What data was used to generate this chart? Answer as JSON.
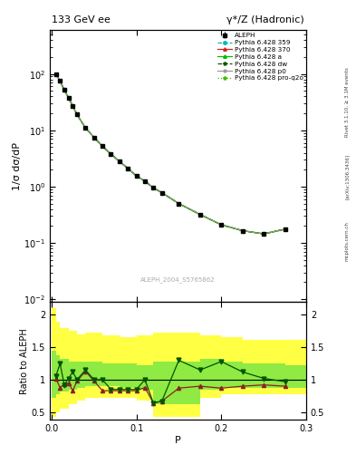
{
  "title_left": "133 GeV ee",
  "title_right": "γ*/Z (Hadronic)",
  "ylabel_main": "1/σ dσ/dP",
  "ylabel_ratio": "Ratio to ALEPH",
  "xlabel": "P",
  "rivet_label": "Rivet 3.1.10, ≥ 3.1M events",
  "arxiv_label": "[arXiv:1306.3436]",
  "mcplots_label": "mcplots.cern.ch",
  "analysis_label": "ALEPH_2004_S5765862",
  "ylim_main": [
    0.009,
    600
  ],
  "ylim_ratio": [
    0.38,
    2.2
  ],
  "xlim": [
    -0.002,
    0.3
  ],
  "data_x": [
    0.005,
    0.01,
    0.015,
    0.02,
    0.025,
    0.03,
    0.04,
    0.05,
    0.06,
    0.07,
    0.08,
    0.09,
    0.1,
    0.11,
    0.12,
    0.13,
    0.15,
    0.175,
    0.2,
    0.225,
    0.25,
    0.275
  ],
  "data_y": [
    100,
    75,
    52,
    38,
    27,
    19,
    11,
    7.5,
    5.2,
    3.8,
    2.8,
    2.1,
    1.55,
    1.25,
    0.95,
    0.78,
    0.5,
    0.32,
    0.21,
    0.165,
    0.145,
    0.175
  ],
  "data_yerr": [
    8,
    5,
    3.5,
    2.5,
    1.8,
    1.2,
    0.7,
    0.45,
    0.3,
    0.22,
    0.16,
    0.12,
    0.09,
    0.07,
    0.055,
    0.045,
    0.03,
    0.02,
    0.013,
    0.01,
    0.009,
    0.011
  ],
  "mc_x": [
    0.005,
    0.01,
    0.015,
    0.02,
    0.025,
    0.03,
    0.04,
    0.05,
    0.06,
    0.07,
    0.08,
    0.09,
    0.1,
    0.11,
    0.12,
    0.13,
    0.15,
    0.175,
    0.2,
    0.225,
    0.25,
    0.275
  ],
  "mc359_y": [
    100,
    75,
    52,
    38,
    27,
    19,
    11,
    7.5,
    5.2,
    3.8,
    2.8,
    2.1,
    1.55,
    1.25,
    0.95,
    0.78,
    0.5,
    0.32,
    0.21,
    0.165,
    0.145,
    0.175
  ],
  "mc370_y": [
    100,
    75,
    52,
    38,
    27,
    19,
    11,
    7.5,
    5.2,
    3.8,
    2.8,
    2.1,
    1.55,
    1.25,
    0.95,
    0.78,
    0.5,
    0.32,
    0.21,
    0.165,
    0.145,
    0.175
  ],
  "mca_y": [
    100,
    75,
    52,
    38,
    27,
    19,
    11,
    7.5,
    5.2,
    3.8,
    2.8,
    2.1,
    1.55,
    1.25,
    0.95,
    0.78,
    0.5,
    0.32,
    0.21,
    0.165,
    0.145,
    0.175
  ],
  "mcdw_y": [
    100,
    75,
    52,
    38,
    27,
    19,
    11,
    7.5,
    5.2,
    3.8,
    2.8,
    2.1,
    1.55,
    1.25,
    0.95,
    0.78,
    0.5,
    0.32,
    0.21,
    0.165,
    0.145,
    0.175
  ],
  "mcp0_y": [
    100,
    75,
    52,
    38,
    27,
    19,
    11,
    7.5,
    5.2,
    3.8,
    2.8,
    2.1,
    1.55,
    1.25,
    0.95,
    0.78,
    0.5,
    0.32,
    0.21,
    0.165,
    0.145,
    0.175
  ],
  "mcq2o_y": [
    100,
    75,
    52,
    38,
    27,
    19,
    11,
    7.5,
    5.2,
    3.8,
    2.8,
    2.1,
    1.55,
    1.25,
    0.95,
    0.78,
    0.5,
    0.32,
    0.21,
    0.165,
    0.145,
    0.175
  ],
  "ratio_x": [
    0.005,
    0.01,
    0.015,
    0.02,
    0.025,
    0.03,
    0.04,
    0.05,
    0.06,
    0.07,
    0.08,
    0.09,
    0.1,
    0.11,
    0.12,
    0.13,
    0.15,
    0.175,
    0.2,
    0.225,
    0.25,
    0.275
  ],
  "ratio_green_dark": [
    1.05,
    1.25,
    0.92,
    1.02,
    1.12,
    1.0,
    1.15,
    1.0,
    1.0,
    0.85,
    0.85,
    0.85,
    0.85,
    1.0,
    0.64,
    0.67,
    1.3,
    1.15,
    1.28,
    1.12,
    1.02,
    0.97
  ],
  "ratio_red": [
    1.02,
    0.88,
    0.93,
    0.95,
    0.83,
    0.98,
    1.13,
    0.98,
    0.83,
    0.83,
    0.83,
    0.83,
    0.83,
    0.88,
    0.64,
    0.67,
    0.87,
    0.9,
    0.87,
    0.9,
    0.92,
    0.9
  ],
  "band_edges": [
    0.0,
    0.005,
    0.01,
    0.02,
    0.03,
    0.04,
    0.06,
    0.08,
    0.1,
    0.12,
    0.14,
    0.175,
    0.2,
    0.225,
    0.275,
    0.3
  ],
  "band_yellow_lo": [
    0.43,
    0.5,
    0.55,
    0.62,
    0.68,
    0.72,
    0.72,
    0.72,
    0.68,
    0.43,
    0.43,
    0.72,
    0.78,
    0.78,
    0.78,
    0.78
  ],
  "band_yellow_hi": [
    2.1,
    1.9,
    1.8,
    1.75,
    1.7,
    1.72,
    1.68,
    1.65,
    1.68,
    1.72,
    1.72,
    1.68,
    1.65,
    1.62,
    1.62,
    1.62
  ],
  "band_green_lo": [
    0.72,
    0.78,
    0.82,
    0.85,
    0.88,
    0.9,
    0.9,
    0.88,
    0.85,
    0.62,
    0.62,
    0.85,
    0.88,
    0.88,
    0.88,
    0.88
  ],
  "band_green_hi": [
    1.45,
    1.38,
    1.32,
    1.28,
    1.28,
    1.28,
    1.25,
    1.25,
    1.22,
    1.28,
    1.28,
    1.32,
    1.28,
    1.25,
    1.22,
    1.22
  ],
  "color_359": "#00bbbb",
  "color_370": "#cc2222",
  "color_a": "#00bb00",
  "color_dw": "#005500",
  "color_p0": "#999999",
  "color_q2o": "#44bb00",
  "color_data": "#000000",
  "color_yellow": "#ffff44",
  "color_green": "#44dd44",
  "bg_color": "#ffffff"
}
